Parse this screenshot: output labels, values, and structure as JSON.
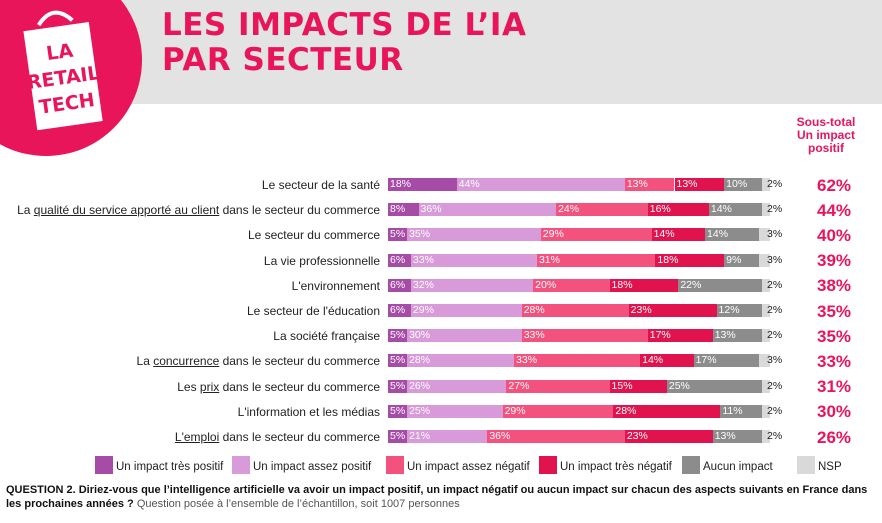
{
  "header": {
    "title_line1": "LES IMPACTS DE L’IA",
    "title_line2": "PAR SECTEUR",
    "logo_text": [
      "LA",
      "RETAIL",
      "TECH"
    ]
  },
  "subtotal_header": [
    "Sous-total",
    "Un impact",
    "positif"
  ],
  "colors": {
    "tres_positif": "#a64ba6",
    "assez_positif": "#d89ad8",
    "assez_negatif": "#f4527e",
    "tres_negatif": "#e0134f",
    "aucun": "#8c8c8c",
    "nsp": "#d9d9d9",
    "accent": "#e8155a"
  },
  "chart_data": {
    "type": "bar",
    "stacked": true,
    "orientation": "horizontal",
    "categories": [
      "Le secteur de la santé",
      "La qualité du service apporté au client dans le secteur du commerce",
      "Le secteur du commerce",
      "La vie professionnelle",
      "L'environnement",
      "Le secteur de l'éducation",
      "La société française",
      "La concurrence dans le secteur du commerce",
      "Les prix dans le secteur du commerce",
      "L'information et les médias",
      "L'emploi dans le secteur du commerce"
    ],
    "category_parts": [
      [
        {
          "t": "Le secteur de la santé",
          "u": false
        }
      ],
      [
        {
          "t": "La ",
          "u": false
        },
        {
          "t": "qualité du service apporté au client",
          "u": true
        },
        {
          "t": " dans le secteur du commerce",
          "u": false
        }
      ],
      [
        {
          "t": "Le secteur du commerce",
          "u": false
        }
      ],
      [
        {
          "t": "La vie professionnelle",
          "u": false
        }
      ],
      [
        {
          "t": "L'environnement",
          "u": false
        }
      ],
      [
        {
          "t": "Le secteur de l'éducation",
          "u": false
        }
      ],
      [
        {
          "t": "La société française",
          "u": false
        }
      ],
      [
        {
          "t": "La ",
          "u": false
        },
        {
          "t": "concurrence",
          "u": true
        },
        {
          "t": " dans le secteur du commerce",
          "u": false
        }
      ],
      [
        {
          "t": "Les ",
          "u": false
        },
        {
          "t": "prix",
          "u": true
        },
        {
          "t": " dans le secteur du commerce",
          "u": false
        }
      ],
      [
        {
          "t": "L'information et les médias",
          "u": false
        }
      ],
      [
        {
          "t": "L'emploi",
          "u": true
        },
        {
          "t": " dans le secteur du commerce",
          "u": false
        }
      ]
    ],
    "series": [
      {
        "name": "Un impact très positif",
        "color_key": "tres_positif",
        "values": [
          18,
          8,
          5,
          6,
          6,
          6,
          5,
          5,
          5,
          5,
          5
        ]
      },
      {
        "name": "Un impact assez positif",
        "color_key": "assez_positif",
        "values": [
          44,
          36,
          35,
          33,
          32,
          29,
          30,
          28,
          26,
          25,
          21
        ]
      },
      {
        "name": "Un impact assez négatif",
        "color_key": "assez_negatif",
        "values": [
          13,
          24,
          29,
          31,
          20,
          28,
          33,
          33,
          27,
          29,
          36
        ]
      },
      {
        "name": "Un impact très négatif",
        "color_key": "tres_negatif",
        "values": [
          13,
          16,
          14,
          18,
          18,
          23,
          17,
          14,
          15,
          28,
          23
        ]
      },
      {
        "name": "Aucun impact",
        "color_key": "aucun",
        "values": [
          10,
          14,
          14,
          9,
          22,
          12,
          13,
          17,
          25,
          11,
          13
        ]
      },
      {
        "name": "NSP",
        "color_key": "nsp",
        "values": [
          2,
          2,
          3,
          3,
          2,
          2,
          2,
          3,
          2,
          2,
          2
        ]
      }
    ],
    "subtotal_positive": [
      62,
      44,
      40,
      39,
      38,
      35,
      35,
      33,
      31,
      30,
      26
    ],
    "value_suffix": "%",
    "xlim": [
      0,
      100
    ],
    "legend_position": "bottom"
  },
  "footer": {
    "question": "QUESTION 2. Diriez-vous que l’intelligence artificielle va avoir un impact positif, un impact négatif ou aucun impact sur chacun des aspects suivants en France dans les prochaines années ?",
    "note": "Question posée à l’ensemble de l’échantillon, soit 1007 personnes"
  }
}
